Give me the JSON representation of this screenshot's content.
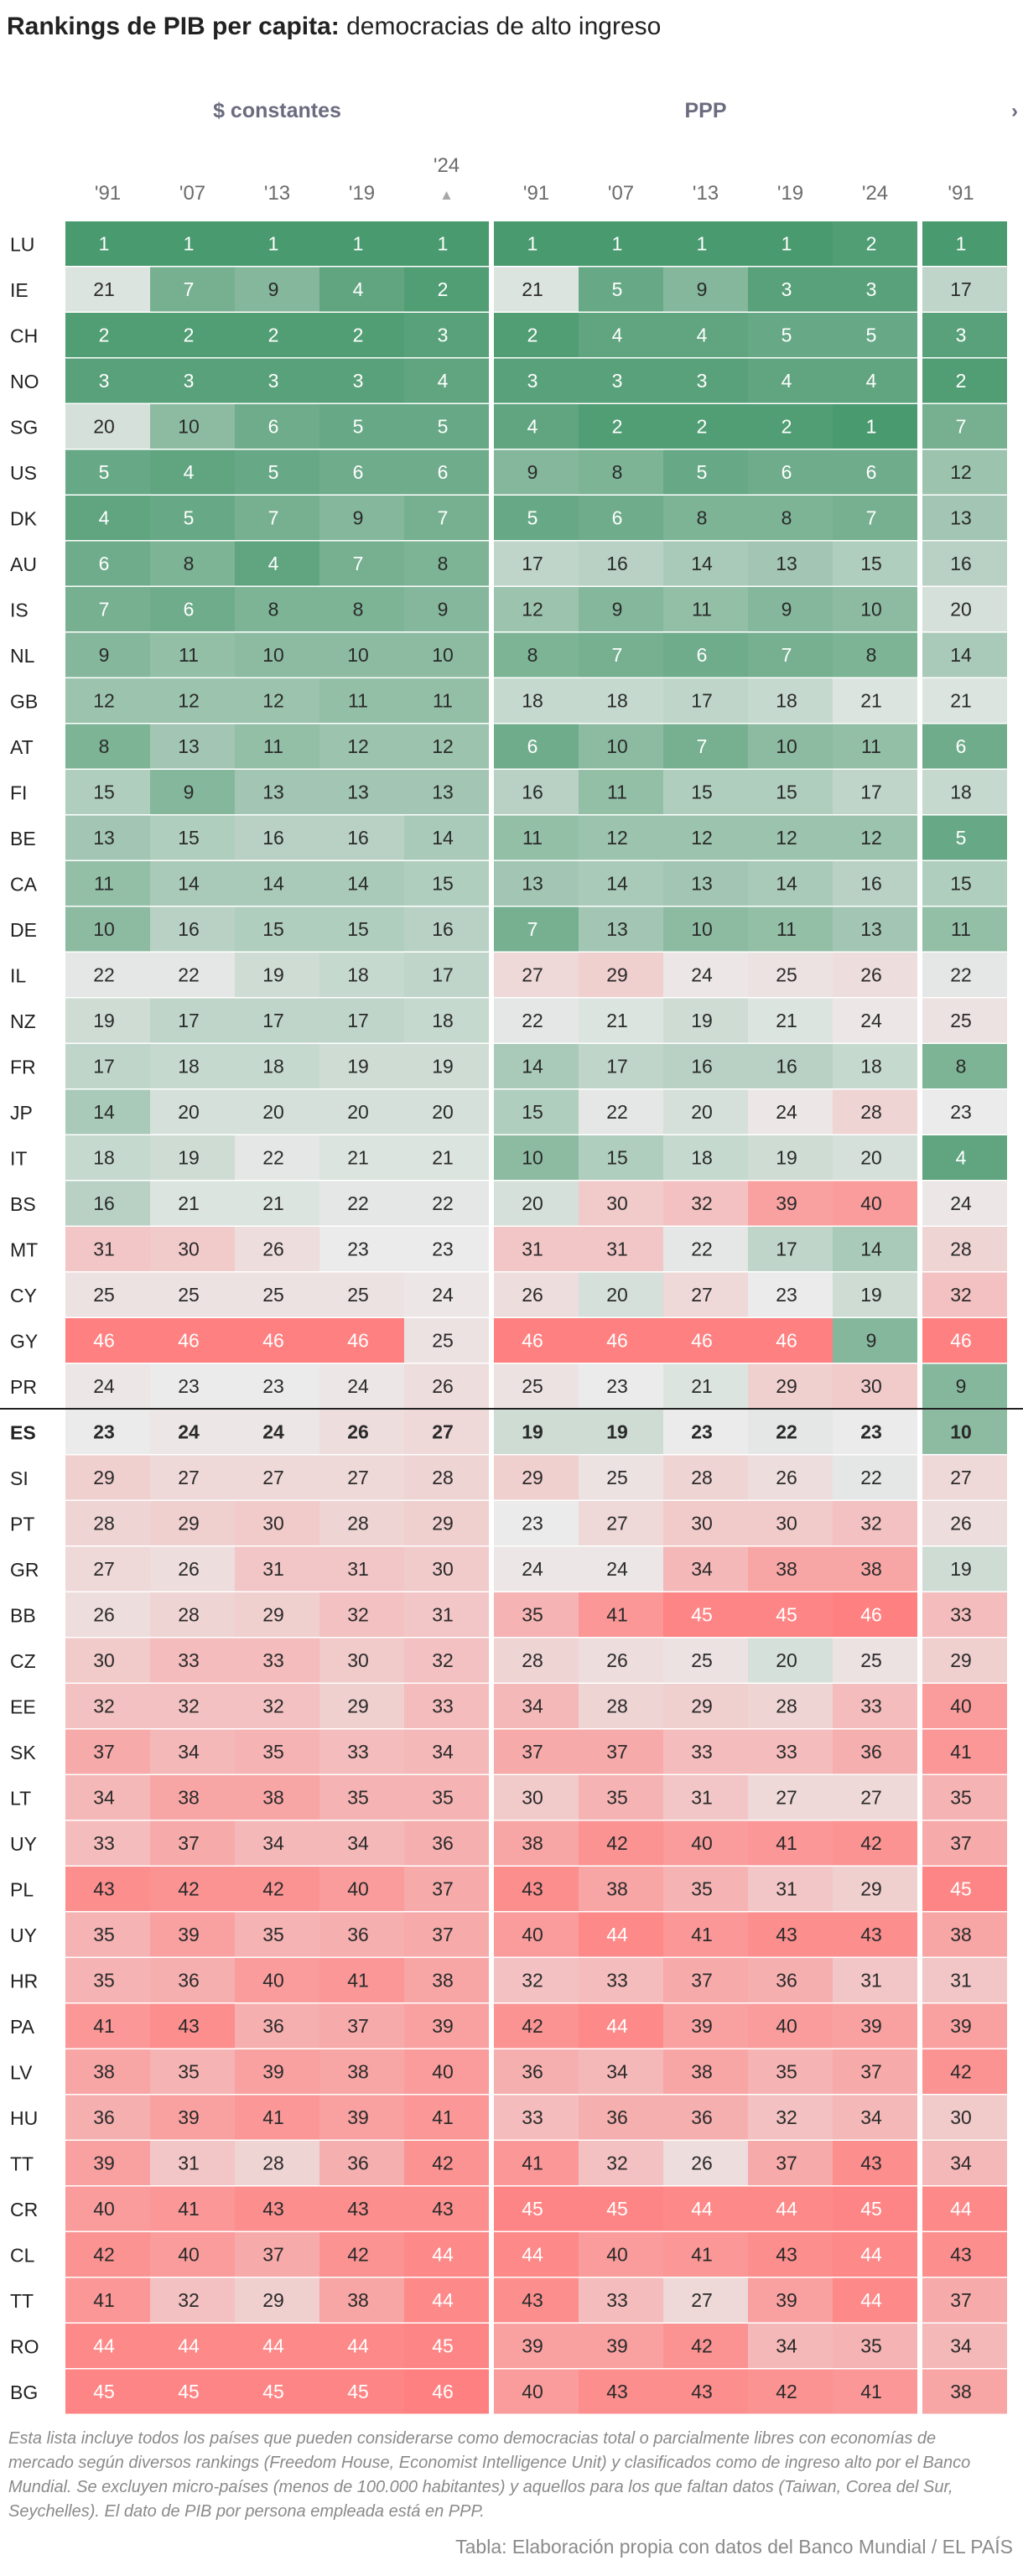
{
  "title": {
    "bold": "Rankings de PIB per capita:",
    "rest": "democracias de alto ingreso"
  },
  "colors": {
    "best": "#4a9a6f",
    "mid": "#ebebeb",
    "worst": "#ff8080",
    "header_text": "#6b6b80",
    "highlight_rule": "#222222"
  },
  "chart_data": {
    "type": "heatmap",
    "title": "Rankings de PIB per capita: democracias de alto ingreso",
    "groups": [
      {
        "label": "$ constantes",
        "years": [
          "'91",
          "'07",
          "'13",
          "'19",
          "'24"
        ]
      },
      {
        "label": "PPP",
        "years": [
          "'91",
          "'07",
          "'13",
          "'19",
          "'24"
        ]
      },
      {
        "label": "›",
        "years": [
          "'91"
        ]
      }
    ],
    "sort_indicator": "▲",
    "highlight_row": "ES",
    "color_scale": {
      "min": 1,
      "mid": 23,
      "max": 46
    },
    "rows": [
      {
        "country": "LU",
        "values": [
          1,
          1,
          1,
          1,
          1,
          1,
          1,
          1,
          1,
          2,
          1
        ]
      },
      {
        "country": "IE",
        "values": [
          21,
          7,
          9,
          4,
          2,
          21,
          5,
          9,
          3,
          3,
          17
        ]
      },
      {
        "country": "CH",
        "values": [
          2,
          2,
          2,
          2,
          3,
          2,
          4,
          4,
          5,
          5,
          3
        ]
      },
      {
        "country": "NO",
        "values": [
          3,
          3,
          3,
          3,
          4,
          3,
          3,
          3,
          4,
          4,
          2
        ]
      },
      {
        "country": "SG",
        "values": [
          20,
          10,
          6,
          5,
          5,
          4,
          2,
          2,
          2,
          1,
          7
        ]
      },
      {
        "country": "US",
        "values": [
          5,
          4,
          5,
          6,
          6,
          9,
          8,
          5,
          6,
          6,
          12
        ]
      },
      {
        "country": "DK",
        "values": [
          4,
          5,
          7,
          9,
          7,
          5,
          6,
          8,
          8,
          7,
          13
        ]
      },
      {
        "country": "AU",
        "values": [
          6,
          8,
          4,
          7,
          8,
          17,
          16,
          14,
          13,
          15,
          16
        ]
      },
      {
        "country": "IS",
        "values": [
          7,
          6,
          8,
          8,
          9,
          12,
          9,
          11,
          9,
          10,
          20
        ]
      },
      {
        "country": "NL",
        "values": [
          9,
          11,
          10,
          10,
          10,
          8,
          7,
          6,
          7,
          8,
          14
        ]
      },
      {
        "country": "GB",
        "values": [
          12,
          12,
          12,
          11,
          11,
          18,
          18,
          17,
          18,
          21,
          21
        ]
      },
      {
        "country": "AT",
        "values": [
          8,
          13,
          11,
          12,
          12,
          6,
          10,
          7,
          10,
          11,
          6
        ]
      },
      {
        "country": "FI",
        "values": [
          15,
          9,
          13,
          13,
          13,
          16,
          11,
          15,
          15,
          17,
          18
        ]
      },
      {
        "country": "BE",
        "values": [
          13,
          15,
          16,
          16,
          14,
          11,
          12,
          12,
          12,
          12,
          5
        ]
      },
      {
        "country": "CA",
        "values": [
          11,
          14,
          14,
          14,
          15,
          13,
          14,
          13,
          14,
          16,
          15
        ]
      },
      {
        "country": "DE",
        "values": [
          10,
          16,
          15,
          15,
          16,
          7,
          13,
          10,
          11,
          13,
          11
        ]
      },
      {
        "country": "IL",
        "values": [
          22,
          22,
          19,
          18,
          17,
          27,
          29,
          24,
          25,
          26,
          22
        ]
      },
      {
        "country": "NZ",
        "values": [
          19,
          17,
          17,
          17,
          18,
          22,
          21,
          19,
          21,
          24,
          25
        ]
      },
      {
        "country": "FR",
        "values": [
          17,
          18,
          18,
          19,
          19,
          14,
          17,
          16,
          16,
          18,
          8
        ]
      },
      {
        "country": "JP",
        "values": [
          14,
          20,
          20,
          20,
          20,
          15,
          22,
          20,
          24,
          28,
          23
        ]
      },
      {
        "country": "IT",
        "values": [
          18,
          19,
          22,
          21,
          21,
          10,
          15,
          18,
          19,
          20,
          4
        ]
      },
      {
        "country": "BS",
        "values": [
          16,
          21,
          21,
          22,
          22,
          20,
          30,
          32,
          39,
          40,
          24
        ]
      },
      {
        "country": "MT",
        "values": [
          31,
          30,
          26,
          23,
          23,
          31,
          31,
          22,
          17,
          14,
          28
        ]
      },
      {
        "country": "CY",
        "values": [
          25,
          25,
          25,
          25,
          24,
          26,
          20,
          27,
          23,
          19,
          32
        ]
      },
      {
        "country": "GY",
        "values": [
          46,
          46,
          46,
          46,
          25,
          46,
          46,
          46,
          46,
          9,
          46
        ]
      },
      {
        "country": "PR",
        "values": [
          24,
          23,
          23,
          24,
          26,
          25,
          23,
          21,
          29,
          30,
          9
        ]
      },
      {
        "country": "ES",
        "values": [
          23,
          24,
          24,
          26,
          27,
          19,
          19,
          23,
          22,
          23,
          10
        ]
      },
      {
        "country": "SI",
        "values": [
          29,
          27,
          27,
          27,
          28,
          29,
          25,
          28,
          26,
          22,
          27
        ]
      },
      {
        "country": "PT",
        "values": [
          28,
          29,
          30,
          28,
          29,
          23,
          27,
          30,
          30,
          32,
          26
        ]
      },
      {
        "country": "GR",
        "values": [
          27,
          26,
          31,
          31,
          30,
          24,
          24,
          34,
          38,
          38,
          19
        ]
      },
      {
        "country": "BB",
        "values": [
          26,
          28,
          29,
          32,
          31,
          35,
          41,
          45,
          45,
          46,
          33
        ]
      },
      {
        "country": "CZ",
        "values": [
          30,
          33,
          33,
          30,
          32,
          28,
          26,
          25,
          20,
          25,
          29
        ]
      },
      {
        "country": "EE",
        "values": [
          32,
          32,
          32,
          29,
          33,
          34,
          28,
          29,
          28,
          33,
          40
        ]
      },
      {
        "country": "SK",
        "values": [
          37,
          34,
          35,
          33,
          34,
          37,
          37,
          33,
          33,
          36,
          41
        ]
      },
      {
        "country": "LT",
        "values": [
          34,
          38,
          38,
          35,
          35,
          30,
          35,
          31,
          27,
          27,
          35
        ]
      },
      {
        "country": "UY",
        "values": [
          33,
          37,
          34,
          34,
          36,
          38,
          42,
          40,
          41,
          42,
          37
        ]
      },
      {
        "country": "PL",
        "values": [
          43,
          42,
          42,
          40,
          37,
          43,
          38,
          35,
          31,
          29,
          45
        ]
      },
      {
        "country": "UY",
        "values": [
          35,
          39,
          35,
          36,
          37,
          40,
          44,
          41,
          43,
          43,
          38
        ]
      },
      {
        "country": "HR",
        "values": [
          35,
          36,
          40,
          41,
          38,
          32,
          33,
          37,
          36,
          31,
          31
        ]
      },
      {
        "country": "PA",
        "values": [
          41,
          43,
          36,
          37,
          39,
          42,
          44,
          39,
          40,
          39,
          39
        ]
      },
      {
        "country": "LV",
        "values": [
          38,
          35,
          39,
          38,
          40,
          36,
          34,
          38,
          35,
          37,
          42
        ]
      },
      {
        "country": "HU",
        "values": [
          36,
          39,
          41,
          39,
          41,
          33,
          36,
          36,
          32,
          34,
          30
        ]
      },
      {
        "country": "TT",
        "values": [
          39,
          31,
          28,
          36,
          42,
          41,
          32,
          26,
          37,
          43,
          34
        ]
      },
      {
        "country": "CR",
        "values": [
          40,
          41,
          43,
          43,
          43,
          45,
          45,
          44,
          44,
          45,
          44
        ]
      },
      {
        "country": "CL",
        "values": [
          42,
          40,
          37,
          42,
          44,
          44,
          40,
          41,
          43,
          44,
          43
        ]
      },
      {
        "country": "TT",
        "values": [
          41,
          32,
          29,
          38,
          44,
          43,
          33,
          27,
          39,
          44,
          37
        ]
      },
      {
        "country": "RO",
        "values": [
          44,
          44,
          44,
          44,
          45,
          39,
          39,
          42,
          34,
          35,
          34
        ]
      },
      {
        "country": "BG",
        "values": [
          45,
          45,
          45,
          45,
          46,
          40,
          43,
          43,
          42,
          41,
          38
        ]
      }
    ]
  },
  "footnote": "Esta lista incluye todos los países que pueden considerarse como democracias total o parcialmente libres con economías de mercado según diversos rankings (Freedom House, Economist Intelligence Unit) y clasificados como de ingreso alto por el Banco Mundial. Se excluyen micro-países (menos de 100.000 habitantes) y aquellos para los que faltan datos (Taiwan, Corea del Sur, Seychelles). El dato de PIB por persona empleada está en PPP.",
  "source": "Tabla: Elaboración propia con datos del Banco Mundial / EL PAÍS"
}
